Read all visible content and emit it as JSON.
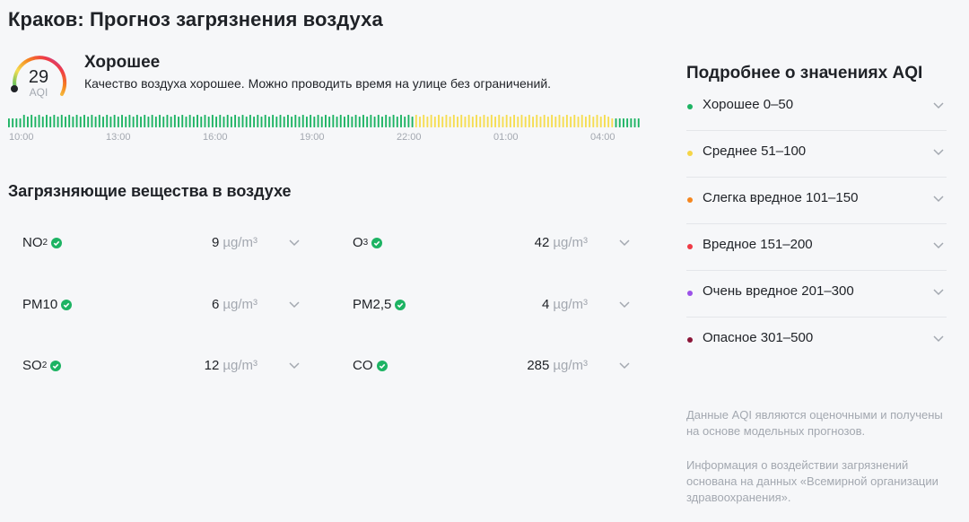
{
  "page_title": "Краков: Прогноз загрязнения воздуха",
  "aqi": {
    "value": "29",
    "unit": "AQI",
    "level": 0.29,
    "status": "Хорошее",
    "description": "Качество воздуха хорошее. Можно проводить время на улице без ограничений."
  },
  "forecast": {
    "time_labels": [
      "10:00",
      "13:00",
      "16:00",
      "19:00",
      "22:00",
      "01:00",
      "04:00"
    ],
    "levels": [
      "good",
      "good",
      "good",
      "good",
      "good",
      "good",
      "good",
      "good",
      "good",
      "good",
      "good",
      "good",
      "good",
      "good",
      "good",
      "good",
      "good",
      "good",
      "good",
      "good",
      "good",
      "good",
      "good",
      "good",
      "good",
      "good",
      "good",
      "good",
      "good",
      "good",
      "good",
      "good",
      "good",
      "good",
      "good",
      "good",
      "good",
      "good",
      "good",
      "good",
      "good",
      "good",
      "good",
      "good",
      "good",
      "good",
      "good",
      "good",
      "good",
      "good",
      "good",
      "good",
      "good",
      "good",
      "good",
      "good",
      "good",
      "good",
      "good",
      "good",
      "good",
      "good",
      "good",
      "good",
      "good",
      "good",
      "good",
      "good",
      "good",
      "good",
      "good",
      "good",
      "good",
      "good",
      "good",
      "good",
      "good",
      "good",
      "good",
      "good",
      "good",
      "good",
      "good",
      "good",
      "good",
      "good",
      "good",
      "good",
      "good",
      "good",
      "good",
      "good",
      "good",
      "good",
      "good",
      "good",
      "good",
      "good",
      "good",
      "good",
      "good",
      "good",
      "good",
      "good",
      "good",
      "good",
      "good",
      "good",
      "moderate",
      "moderate",
      "moderate",
      "moderate",
      "moderate",
      "moderate",
      "moderate",
      "moderate",
      "moderate",
      "moderate",
      "moderate",
      "moderate",
      "moderate",
      "moderate",
      "moderate",
      "moderate",
      "moderate",
      "moderate",
      "moderate",
      "moderate",
      "moderate",
      "moderate",
      "moderate",
      "moderate",
      "moderate",
      "moderate",
      "moderate",
      "moderate",
      "moderate",
      "moderate",
      "moderate",
      "moderate",
      "moderate",
      "moderate",
      "moderate",
      "moderate",
      "moderate",
      "moderate",
      "moderate",
      "moderate",
      "moderate",
      "moderate",
      "moderate",
      "moderate",
      "moderate",
      "moderate",
      "moderate",
      "moderate",
      "moderate",
      "moderate",
      "moderate",
      "moderate",
      "moderate",
      "good",
      "good",
      "good",
      "good",
      "good",
      "good",
      "good"
    ],
    "colors": {
      "good": "#1db363",
      "moderate": "#f5dd51"
    }
  },
  "pollutants_title": "Загрязняющие вещества в воздухе",
  "pollutants": [
    {
      "name": "NO",
      "sub": "2",
      "value": "9",
      "unit": "µg/m³"
    },
    {
      "name": "O",
      "sub": "3",
      "value": "42",
      "unit": "µg/m³"
    },
    {
      "name": "PM10",
      "sub": "",
      "value": "6",
      "unit": "µg/m³"
    },
    {
      "name": "PM2,5",
      "sub": "",
      "value": "4",
      "unit": "µg/m³"
    },
    {
      "name": "SO",
      "sub": "2",
      "value": "12",
      "unit": "µg/m³"
    },
    {
      "name": "CO",
      "sub": "",
      "value": "285",
      "unit": "µg/m³"
    }
  ],
  "aqi_panel": {
    "title": "Подробнее о значениях AQI",
    "items": [
      {
        "label": "Хорошее 0–50",
        "color": "#1db363"
      },
      {
        "label": "Среднее 51–100",
        "color": "#f5d547"
      },
      {
        "label": "Слегка вредное 101–150",
        "color": "#f5861f"
      },
      {
        "label": "Вредное 151–200",
        "color": "#ef3a45"
      },
      {
        "label": "Очень вредное 201–300",
        "color": "#9b51e8"
      },
      {
        "label": "Опасное 301–500",
        "color": "#8b1538"
      }
    ]
  },
  "notes": [
    "Данные AQI являются оценочными и получены на основе модельных прогнозов.",
    "Информация о воздействии загрязнений основана на данных «Всемирной организации здравоохранения»."
  ],
  "colors": {
    "check": "#1db363",
    "chevron": "#a3a8b0"
  }
}
